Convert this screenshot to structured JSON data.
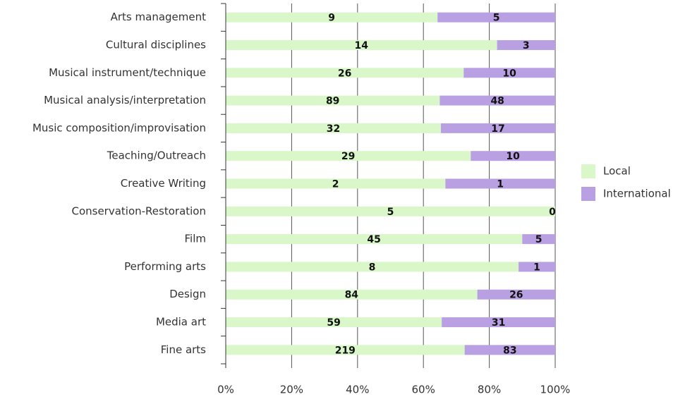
{
  "chart_data": {
    "type": "bar",
    "orientation": "horizontal",
    "stacking": "percent",
    "categories": [
      "Arts management",
      "Cultural disciplines",
      "Musical instrument/technique",
      "Musical analysis/interpretation",
      "Music composition/improvisation",
      "Teaching/Outreach",
      "Creative Writing",
      "Conservation-Restoration",
      "Film",
      "Performing arts",
      "Design",
      "Media art",
      "Fine arts"
    ],
    "series": [
      {
        "name": "Local",
        "color": "#d9f7c9",
        "values": [
          9,
          14,
          26,
          89,
          32,
          29,
          2,
          5,
          45,
          8,
          84,
          59,
          219
        ]
      },
      {
        "name": "International",
        "color": "#b9a0e3",
        "values": [
          5,
          3,
          10,
          48,
          17,
          10,
          1,
          0,
          5,
          1,
          26,
          31,
          83
        ]
      }
    ],
    "xlim": [
      0,
      100
    ],
    "xticks": [
      {
        "value": 0,
        "label": "0%"
      },
      {
        "value": 20,
        "label": "20%"
      },
      {
        "value": 40,
        "label": "40%"
      },
      {
        "value": 60,
        "label": "60%"
      },
      {
        "value": 80,
        "label": "80%"
      },
      {
        "value": 100,
        "label": "100%"
      }
    ],
    "grid": true,
    "legend": "right"
  }
}
